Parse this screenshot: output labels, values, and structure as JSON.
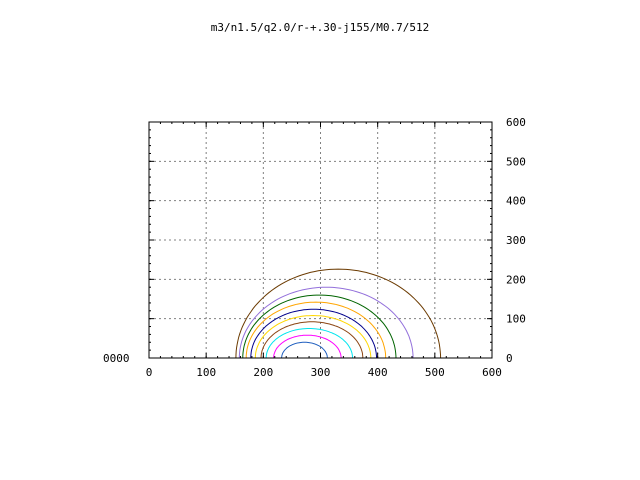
{
  "chart_data": {
    "type": "line",
    "title": "m3/n1.5/q2.0/r-+.30-j155/M0.7/512",
    "xlabel": "",
    "ylabel": "",
    "xlim": [
      0,
      600
    ],
    "ylim": [
      0,
      600
    ],
    "x_ticks": [
      "0",
      "100",
      "200",
      "300",
      "400",
      "500",
      "600"
    ],
    "y_ticks": [
      "0",
      "100",
      "200",
      "300",
      "400",
      "500",
      "600"
    ],
    "y_axis_side": "right",
    "left_corner_label": "0000",
    "grid": true,
    "series": [
      {
        "xmin": 232,
        "xmax": 312,
        "peak_x": 272,
        "height": 40,
        "color": "#1f5fbf"
      },
      {
        "xmin": 218,
        "xmax": 336,
        "peak_x": 277,
        "height": 58,
        "color": "#ff00ff"
      },
      {
        "xmin": 205,
        "xmax": 356,
        "peak_x": 280,
        "height": 75,
        "color": "#00e5ee"
      },
      {
        "xmin": 196,
        "xmax": 374,
        "peak_x": 285,
        "height": 92,
        "color": "#8b4513"
      },
      {
        "xmin": 186,
        "xmax": 388,
        "peak_x": 287,
        "height": 108,
        "color": "#ffd700"
      },
      {
        "xmin": 178,
        "xmax": 398,
        "peak_x": 288,
        "height": 124,
        "color": "#00008b"
      },
      {
        "xmin": 170,
        "xmax": 414,
        "peak_x": 292,
        "height": 142,
        "color": "#ffa500"
      },
      {
        "xmin": 164,
        "xmax": 432,
        "peak_x": 298,
        "height": 160,
        "color": "#006400"
      },
      {
        "xmin": 158,
        "xmax": 462,
        "peak_x": 310,
        "height": 180,
        "color": "#9370db"
      },
      {
        "xmin": 152,
        "xmax": 510,
        "peak_x": 331,
        "height": 226,
        "color": "#6b3a00"
      }
    ]
  }
}
